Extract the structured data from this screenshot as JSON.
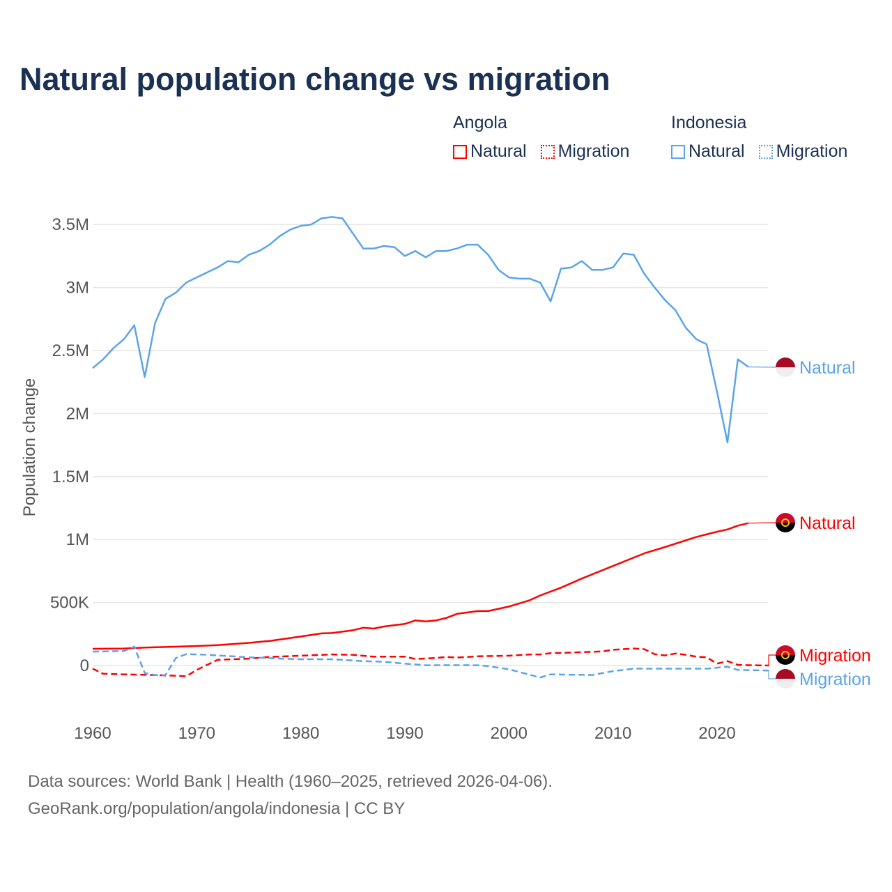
{
  "chart_data": {
    "type": "line",
    "title": "Natural population change vs migration",
    "ylabel": "Population change",
    "xlabel": "",
    "xlim": [
      1960,
      2025
    ],
    "ylim": [
      -250000,
      3750000
    ],
    "x_ticks": [
      1960,
      1970,
      1980,
      1990,
      2000,
      2010,
      2020
    ],
    "x_tick_labels": [
      "1960",
      "1970",
      "1980",
      "1990",
      "2000",
      "2010",
      "2020"
    ],
    "y_ticks": [
      0,
      500000,
      1000000,
      1500000,
      2000000,
      2500000,
      3000000,
      3500000
    ],
    "y_tick_labels": [
      "0",
      "500K",
      "1M",
      "1.5M",
      "2M",
      "2.5M",
      "3M",
      "3.5M"
    ],
    "grid": true,
    "legend": {
      "placement": "top-right",
      "groups": [
        {
          "country": "Angola",
          "items": [
            "Natural",
            "Migration"
          ]
        },
        {
          "country": "Indonesia",
          "items": [
            "Natural",
            "Migration"
          ]
        }
      ]
    },
    "series": [
      {
        "name": "Indonesia Natural",
        "country": "Indonesia",
        "kind": "Natural",
        "end_label": "Natural",
        "color": "#5ba4e8",
        "dash": "solid",
        "points": [
          [
            1960,
            2360000
          ],
          [
            1961,
            2430000
          ],
          [
            1962,
            2520000
          ],
          [
            1963,
            2590000
          ],
          [
            1964,
            2700000
          ],
          [
            1965,
            2290000
          ],
          [
            1966,
            2720000
          ],
          [
            1967,
            2910000
          ],
          [
            1968,
            2960000
          ],
          [
            1969,
            3040000
          ],
          [
            1970,
            3080000
          ],
          [
            1971,
            3120000
          ],
          [
            1972,
            3160000
          ],
          [
            1973,
            3210000
          ],
          [
            1974,
            3200000
          ],
          [
            1975,
            3260000
          ],
          [
            1976,
            3290000
          ],
          [
            1977,
            3340000
          ],
          [
            1978,
            3410000
          ],
          [
            1979,
            3460000
          ],
          [
            1980,
            3490000
          ],
          [
            1981,
            3500000
          ],
          [
            1982,
            3550000
          ],
          [
            1983,
            3560000
          ],
          [
            1984,
            3550000
          ],
          [
            1985,
            3430000
          ],
          [
            1986,
            3310000
          ],
          [
            1987,
            3310000
          ],
          [
            1988,
            3330000
          ],
          [
            1989,
            3320000
          ],
          [
            1990,
            3250000
          ],
          [
            1991,
            3290000
          ],
          [
            1992,
            3240000
          ],
          [
            1993,
            3290000
          ],
          [
            1994,
            3290000
          ],
          [
            1995,
            3310000
          ],
          [
            1996,
            3340000
          ],
          [
            1997,
            3340000
          ],
          [
            1998,
            3260000
          ],
          [
            1999,
            3140000
          ],
          [
            2000,
            3080000
          ],
          [
            2001,
            3070000
          ],
          [
            2002,
            3070000
          ],
          [
            2003,
            3040000
          ],
          [
            2004,
            2890000
          ],
          [
            2005,
            3150000
          ],
          [
            2006,
            3160000
          ],
          [
            2007,
            3210000
          ],
          [
            2008,
            3140000
          ],
          [
            2009,
            3140000
          ],
          [
            2010,
            3160000
          ],
          [
            2011,
            3270000
          ],
          [
            2012,
            3260000
          ],
          [
            2013,
            3110000
          ],
          [
            2014,
            3000000
          ],
          [
            2015,
            2900000
          ],
          [
            2016,
            2820000
          ],
          [
            2017,
            2680000
          ],
          [
            2018,
            2590000
          ],
          [
            2019,
            2550000
          ],
          [
            2020,
            2170000
          ],
          [
            2021,
            1770000
          ],
          [
            2022,
            2430000
          ],
          [
            2023,
            2370000
          ]
        ]
      },
      {
        "name": "Angola Natural",
        "country": "Angola",
        "kind": "Natural",
        "end_label": "Natural",
        "color": "#ff0000",
        "dash": "solid",
        "points": [
          [
            1960,
            133000
          ],
          [
            1963,
            135000
          ],
          [
            1965,
            142000
          ],
          [
            1970,
            155000
          ],
          [
            1972,
            162000
          ],
          [
            1975,
            180000
          ],
          [
            1977,
            195000
          ],
          [
            1980,
            230000
          ],
          [
            1982,
            255000
          ],
          [
            1983,
            258000
          ],
          [
            1985,
            280000
          ],
          [
            1986,
            300000
          ],
          [
            1987,
            293000
          ],
          [
            1988,
            310000
          ],
          [
            1990,
            330000
          ],
          [
            1991,
            358000
          ],
          [
            1992,
            350000
          ],
          [
            1993,
            358000
          ],
          [
            1994,
            378000
          ],
          [
            1995,
            410000
          ],
          [
            1997,
            432000
          ],
          [
            1998,
            432000
          ],
          [
            2000,
            468000
          ],
          [
            2002,
            518000
          ],
          [
            2003,
            556000
          ],
          [
            2005,
            618000
          ],
          [
            2007,
            690000
          ],
          [
            2010,
            790000
          ],
          [
            2013,
            890000
          ],
          [
            2015,
            940000
          ],
          [
            2018,
            1020000
          ],
          [
            2020,
            1062000
          ],
          [
            2021,
            1080000
          ],
          [
            2022,
            1110000
          ],
          [
            2023,
            1130000
          ]
        ]
      },
      {
        "name": "Angola Migration",
        "country": "Angola",
        "kind": "Migration",
        "end_label": "Migration",
        "color": "#ff0000",
        "dash": "dashed",
        "points": [
          [
            1960,
            -25000
          ],
          [
            1961,
            -65000
          ],
          [
            1963,
            -70000
          ],
          [
            1966,
            -75000
          ],
          [
            1969,
            -85000
          ],
          [
            1970,
            -35000
          ],
          [
            1972,
            45000
          ],
          [
            1975,
            55000
          ],
          [
            1977,
            68000
          ],
          [
            1980,
            78000
          ],
          [
            1983,
            88000
          ],
          [
            1985,
            85000
          ],
          [
            1987,
            70000
          ],
          [
            1990,
            70000
          ],
          [
            1991,
            52000
          ],
          [
            1993,
            60000
          ],
          [
            1994,
            68000
          ],
          [
            1995,
            63000
          ],
          [
            1997,
            73000
          ],
          [
            2000,
            78000
          ],
          [
            2002,
            88000
          ],
          [
            2003,
            88000
          ],
          [
            2004,
            98000
          ],
          [
            2006,
            103000
          ],
          [
            2009,
            112000
          ],
          [
            2010,
            125000
          ],
          [
            2012,
            135000
          ],
          [
            2013,
            130000
          ],
          [
            2014,
            90000
          ],
          [
            2015,
            80000
          ],
          [
            2016,
            95000
          ],
          [
            2017,
            85000
          ],
          [
            2018,
            70000
          ],
          [
            2019,
            65000
          ],
          [
            2020,
            15000
          ],
          [
            2021,
            35000
          ],
          [
            2022,
            5000
          ],
          [
            2023,
            3000
          ],
          [
            2025,
            0
          ]
        ]
      },
      {
        "name": "Indonesia Migration",
        "country": "Indonesia",
        "kind": "Migration",
        "end_label": "Migration",
        "color": "#5ba4e8",
        "dash": "dashed",
        "points": [
          [
            1960,
            110000
          ],
          [
            1963,
            115000
          ],
          [
            1964,
            150000
          ],
          [
            1965,
            -60000
          ],
          [
            1966,
            -75000
          ],
          [
            1967,
            -75000
          ],
          [
            1968,
            60000
          ],
          [
            1969,
            90000
          ],
          [
            1971,
            85000
          ],
          [
            1975,
            65000
          ],
          [
            1978,
            55000
          ],
          [
            1980,
            50000
          ],
          [
            1983,
            50000
          ],
          [
            1986,
            35000
          ],
          [
            1988,
            30000
          ],
          [
            1990,
            15000
          ],
          [
            1992,
            2000
          ],
          [
            1995,
            3000
          ],
          [
            1997,
            2000
          ],
          [
            1998,
            -5000
          ],
          [
            2000,
            -30000
          ],
          [
            2003,
            -95000
          ],
          [
            2004,
            -70000
          ],
          [
            2008,
            -75000
          ],
          [
            2010,
            -45000
          ],
          [
            2012,
            -25000
          ],
          [
            2015,
            -25000
          ],
          [
            2019,
            -25000
          ],
          [
            2021,
            -10000
          ],
          [
            2022,
            -35000
          ],
          [
            2025,
            -40000
          ]
        ]
      }
    ]
  },
  "footer": {
    "line1": "Data sources: World Bank | Health (1960–2025, retrieved 2026-04-06).",
    "line2": "GeoRank.org/population/angola/indonesia | CC BY"
  }
}
